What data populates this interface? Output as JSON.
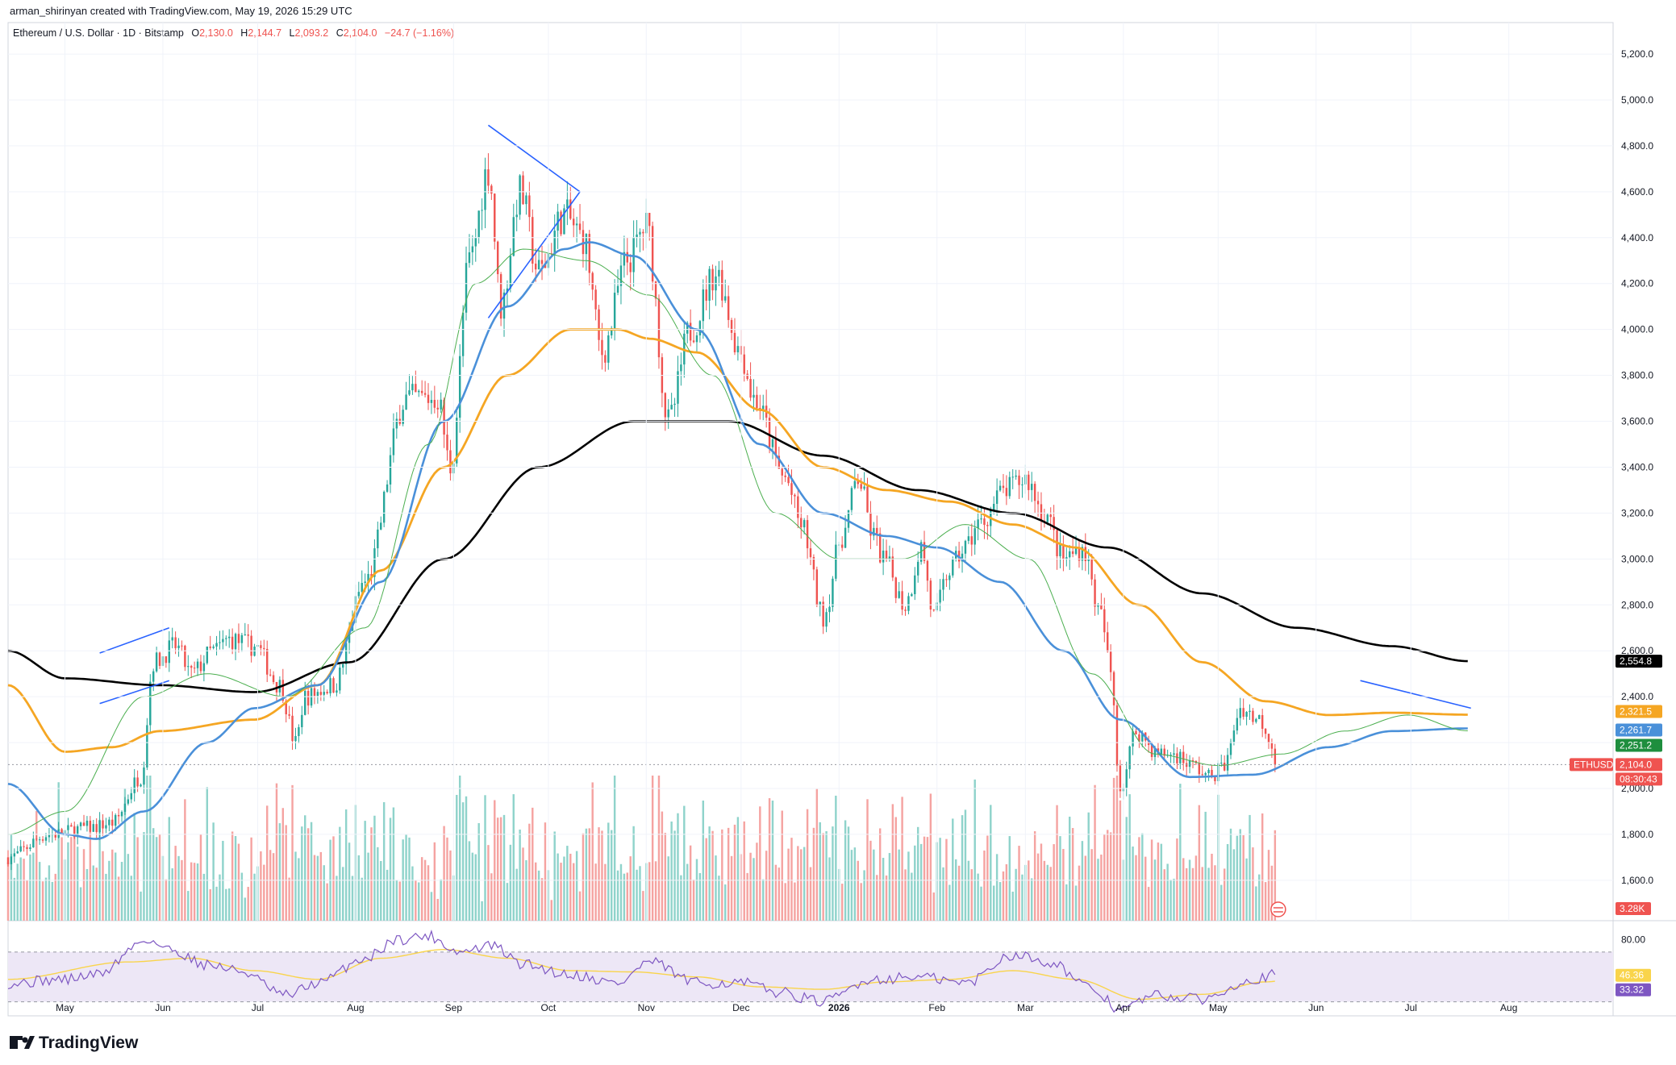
{
  "header": {
    "credit": "arman_shirinyan created with TradingView.com, May 19, 2026 15:29 UTC",
    "symbol": "Ethereum / U.S. Dollar · 1D · Bitstamp",
    "o_label": "O",
    "o_value": "2,130.0",
    "h_label": "H",
    "h_value": "2,144.7",
    "l_label": "L",
    "l_value": "2,093.2",
    "c_label": "C",
    "c_value": "2,104.0",
    "change": "−24.7 (−1.16%)"
  },
  "footer": {
    "logo_text": "TradingView"
  },
  "colors": {
    "up": "#26a69a",
    "down": "#ef5350",
    "vol_up": "#8fd3cb",
    "vol_down": "#f5a3a1",
    "sma20": "#4caf50",
    "sma50": "#4a90d9",
    "sma100": "#f5a623",
    "sma200": "#000000",
    "rsi": "#7e57c2",
    "rsi_ma": "#f9d44b",
    "trendline": "#2962ff"
  },
  "chart_data": {
    "type": "candlestick",
    "title": "Ethereum / U.S. Dollar · 1D · Bitstamp",
    "y_axis": {
      "ticks": [
        "5,200.0",
        "5,000.0",
        "4,800.0",
        "4,600.0",
        "4,400.0",
        "4,200.0",
        "4,000.0",
        "3,800.0",
        "3,600.0",
        "3,400.0",
        "3,200.0",
        "3,000.0",
        "2,800.0",
        "2,600.0",
        "2,400.0",
        "2,200.0",
        "2,000.0",
        "1,800.0",
        "1,600.0"
      ],
      "tick_values": [
        5200,
        5000,
        4800,
        4600,
        4400,
        4200,
        4000,
        3800,
        3600,
        3400,
        3200,
        3000,
        2800,
        2600,
        2400,
        2200,
        2000,
        1800,
        1600
      ],
      "range": [
        1500,
        5300
      ]
    },
    "x_axis": {
      "labels": [
        "May",
        "Jun",
        "Jul",
        "Aug",
        "Sep",
        "Oct",
        "Nov",
        "Dec",
        "2026",
        "Feb",
        "Mar",
        "Apr",
        "May",
        "Jun",
        "Jul",
        "Aug"
      ],
      "label_days": [
        0,
        31,
        61,
        92,
        123,
        153,
        184,
        214,
        245,
        276,
        304,
        335,
        365,
        396,
        426,
        457
      ],
      "day_range": [
        -18,
        490
      ],
      "last_day": 383
    },
    "price_anchors": [
      [
        -18,
        1700
      ],
      [
        -5,
        1800
      ],
      [
        8,
        1830
      ],
      [
        15,
        1850
      ],
      [
        24,
        2050
      ],
      [
        28,
        2550
      ],
      [
        35,
        2620
      ],
      [
        40,
        2500
      ],
      [
        47,
        2600
      ],
      [
        52,
        2650
      ],
      [
        60,
        2620
      ],
      [
        68,
        2450
      ],
      [
        73,
        2200
      ],
      [
        76,
        2400
      ],
      [
        85,
        2450
      ],
      [
        95,
        2900
      ],
      [
        108,
        3700
      ],
      [
        118,
        3700
      ],
      [
        122,
        3400
      ],
      [
        128,
        4300
      ],
      [
        134,
        4700
      ],
      [
        138,
        4100
      ],
      [
        144,
        4600
      ],
      [
        150,
        4250
      ],
      [
        158,
        4500
      ],
      [
        164,
        4400
      ],
      [
        170,
        3900
      ],
      [
        178,
        4300
      ],
      [
        184,
        4450
      ],
      [
        191,
        3600
      ],
      [
        198,
        4000
      ],
      [
        206,
        4250
      ],
      [
        214,
        3900
      ],
      [
        218,
        3700
      ],
      [
        228,
        3350
      ],
      [
        233,
        3150
      ],
      [
        240,
        2750
      ],
      [
        246,
        3100
      ],
      [
        251,
        3350
      ],
      [
        256,
        3100
      ],
      [
        259,
        3000
      ],
      [
        266,
        2800
      ],
      [
        271,
        3050
      ],
      [
        275,
        2750
      ],
      [
        280,
        2950
      ],
      [
        285,
        3050
      ],
      [
        289,
        3150
      ],
      [
        298,
        3300
      ],
      [
        304,
        3350
      ],
      [
        310,
        3200
      ],
      [
        316,
        3000
      ],
      [
        322,
        3050
      ],
      [
        328,
        2750
      ],
      [
        331,
        2500
      ],
      [
        334,
        2000
      ],
      [
        339,
        2250
      ],
      [
        346,
        2150
      ],
      [
        351,
        2150
      ],
      [
        357,
        2100
      ],
      [
        362,
        2050
      ],
      [
        367,
        2100
      ],
      [
        372,
        2350
      ],
      [
        378,
        2300
      ],
      [
        384,
        2150
      ],
      [
        389,
        2050
      ],
      [
        396,
        2200
      ],
      [
        402,
        2300
      ],
      [
        407,
        2400
      ],
      [
        412,
        2300
      ],
      [
        418,
        2350
      ],
      [
        424,
        2250
      ],
      [
        430,
        2320
      ],
      [
        436,
        2400
      ],
      [
        440,
        2270
      ],
      [
        444,
        2104
      ]
    ],
    "series": [
      {
        "name": "",
        "values": [
          [
            -18,
            2600
          ],
          [
            0,
            2480
          ],
          [
            30,
            2450
          ],
          [
            60,
            2420
          ],
          [
            90,
            2550
          ],
          [
            120,
            3000
          ],
          [
            150,
            3400
          ],
          [
            180,
            3600
          ],
          [
            210,
            3600
          ],
          [
            240,
            3450
          ],
          [
            270,
            3300
          ],
          [
            300,
            3200
          ],
          [
            330,
            3050
          ],
          [
            360,
            2850
          ],
          [
            390,
            2700
          ],
          [
            420,
            2620
          ],
          [
            444,
            2554.8
          ]
        ]
      },
      {
        "name": "",
        "values": [
          [
            -18,
            2450
          ],
          [
            0,
            2160
          ],
          [
            15,
            2180
          ],
          [
            30,
            2250
          ],
          [
            60,
            2300
          ],
          [
            80,
            2450
          ],
          [
            100,
            2950
          ],
          [
            120,
            3400
          ],
          [
            140,
            3800
          ],
          [
            160,
            4000
          ],
          [
            175,
            4000
          ],
          [
            185,
            3960
          ],
          [
            200,
            3900
          ],
          [
            220,
            3650
          ],
          [
            240,
            3400
          ],
          [
            260,
            3300
          ],
          [
            280,
            3250
          ],
          [
            300,
            3150
          ],
          [
            320,
            3050
          ],
          [
            340,
            2800
          ],
          [
            360,
            2550
          ],
          [
            380,
            2380
          ],
          [
            400,
            2320
          ],
          [
            420,
            2330
          ],
          [
            444,
            2321.5
          ]
        ]
      },
      {
        "name": "",
        "values": [
          [
            -18,
            2020
          ],
          [
            0,
            1800
          ],
          [
            10,
            1780
          ],
          [
            25,
            1900
          ],
          [
            45,
            2200
          ],
          [
            60,
            2350
          ],
          [
            80,
            2450
          ],
          [
            100,
            2900
          ],
          [
            120,
            3600
          ],
          [
            140,
            4100
          ],
          [
            158,
            4350
          ],
          [
            166,
            4380
          ],
          [
            180,
            4320
          ],
          [
            200,
            4000
          ],
          [
            220,
            3500
          ],
          [
            240,
            3200
          ],
          [
            260,
            3100
          ],
          [
            276,
            3050
          ],
          [
            296,
            2900
          ],
          [
            316,
            2600
          ],
          [
            334,
            2300
          ],
          [
            356,
            2050
          ],
          [
            376,
            2060
          ],
          [
            400,
            2180
          ],
          [
            420,
            2250
          ],
          [
            444,
            2261.7
          ]
        ]
      },
      {
        "name": "",
        "values": [
          [
            -18,
            1800
          ],
          [
            0,
            1900
          ],
          [
            25,
            2400
          ],
          [
            45,
            2500
          ],
          [
            70,
            2400
          ],
          [
            95,
            2700
          ],
          [
            115,
            3500
          ],
          [
            130,
            4200
          ],
          [
            145,
            4350
          ],
          [
            165,
            4300
          ],
          [
            185,
            4150
          ],
          [
            205,
            3800
          ],
          [
            225,
            3200
          ],
          [
            245,
            3000
          ],
          [
            265,
            3000
          ],
          [
            285,
            3150
          ],
          [
            305,
            3000
          ],
          [
            325,
            2500
          ],
          [
            345,
            2150
          ],
          [
            365,
            2100
          ],
          [
            385,
            2150
          ],
          [
            405,
            2250
          ],
          [
            425,
            2320
          ],
          [
            444,
            2251.2
          ]
        ]
      }
    ],
    "trendlines": [
      [
        [
          11,
          2590
        ],
        [
          33,
          2700
        ]
      ],
      [
        [
          11,
          2370
        ],
        [
          33,
          2470
        ]
      ],
      [
        [
          134,
          4890
        ],
        [
          163,
          4600
        ]
      ],
      [
        [
          134,
          4050
        ],
        [
          163,
          4600
        ]
      ],
      [
        [
          410,
          2470
        ],
        [
          445,
          2350
        ]
      ]
    ],
    "price_labels": [
      {
        "text": "2,554.8",
        "value": 2554.8,
        "color": "#000000"
      },
      {
        "text": "2,321.5",
        "value": 2321.5,
        "color": "#f5a623"
      },
      {
        "text": "2,261.7",
        "value": 2261.7,
        "color": "#4a90d9"
      },
      {
        "text": "2,251.2",
        "value": 2251.2,
        "color": "#1e8e3e"
      },
      {
        "text": "2,104.0",
        "value": 2104.0,
        "color": "#ef5350"
      }
    ],
    "countdown": "08:30:43",
    "symbol_tag": "ETHUSD",
    "volume_label": "3.28K",
    "rsi": {
      "ticks": [
        "80.00"
      ],
      "tick_values": [
        80
      ],
      "bands": [
        70,
        30
      ],
      "range": [
        20,
        90
      ],
      "value_label": "33.32",
      "ma_label": "46.36",
      "anchors": [
        [
          -18,
          45
        ],
        [
          0,
          48
        ],
        [
          10,
          52
        ],
        [
          26,
          80
        ],
        [
          33,
          72
        ],
        [
          45,
          60
        ],
        [
          55,
          55
        ],
        [
          70,
          35
        ],
        [
          80,
          45
        ],
        [
          95,
          65
        ],
        [
          105,
          80
        ],
        [
          115,
          83
        ],
        [
          125,
          70
        ],
        [
          135,
          75
        ],
        [
          145,
          60
        ],
        [
          160,
          52
        ],
        [
          175,
          45
        ],
        [
          185,
          62
        ],
        [
          200,
          45
        ],
        [
          215,
          45
        ],
        [
          225,
          38
        ],
        [
          240,
          30
        ],
        [
          255,
          48
        ],
        [
          270,
          50
        ],
        [
          285,
          45
        ],
        [
          300,
          68
        ],
        [
          312,
          62
        ],
        [
          325,
          40
        ],
        [
          334,
          24
        ],
        [
          345,
          35
        ],
        [
          360,
          32
        ],
        [
          375,
          48
        ],
        [
          390,
          56
        ],
        [
          405,
          62
        ],
        [
          420,
          60
        ],
        [
          430,
          55
        ],
        [
          444,
          33.32
        ]
      ],
      "ma_anchors": [
        [
          -18,
          48
        ],
        [
          20,
          62
        ],
        [
          40,
          65
        ],
        [
          60,
          55
        ],
        [
          80,
          48
        ],
        [
          100,
          65
        ],
        [
          120,
          72
        ],
        [
          140,
          65
        ],
        [
          160,
          55
        ],
        [
          180,
          54
        ],
        [
          200,
          50
        ],
        [
          220,
          42
        ],
        [
          240,
          40
        ],
        [
          260,
          46
        ],
        [
          280,
          48
        ],
        [
          300,
          55
        ],
        [
          320,
          48
        ],
        [
          340,
          32
        ],
        [
          360,
          36
        ],
        [
          380,
          46
        ],
        [
          400,
          54
        ],
        [
          420,
          56
        ],
        [
          444,
          46.36
        ]
      ]
    }
  }
}
